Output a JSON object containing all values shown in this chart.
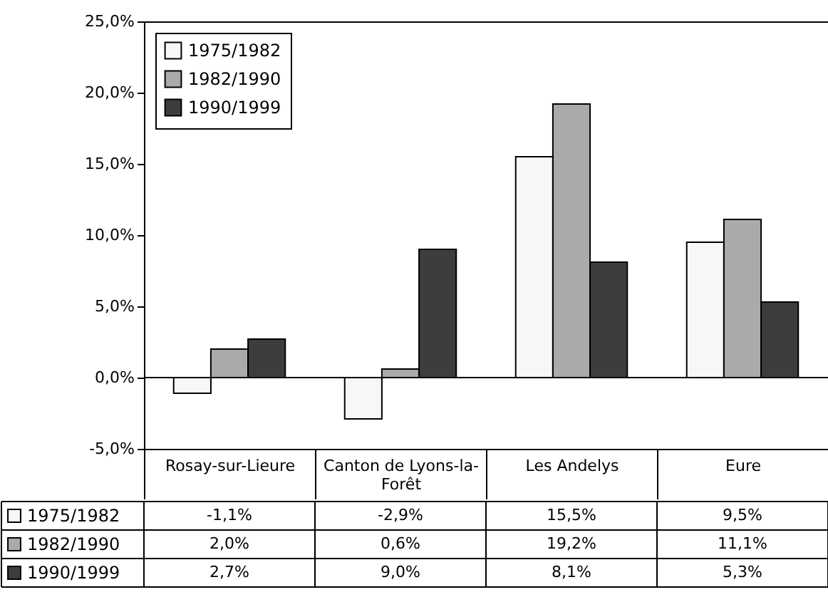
{
  "chart_data": {
    "type": "bar",
    "categories": [
      "Rosay-sur-Lieure",
      "Canton de Lyons-la-Forêt",
      "Les Andelys",
      "Eure"
    ],
    "series": [
      {
        "name": "1975/1982",
        "color": "#f7f7f7",
        "values": [
          -1.1,
          -2.9,
          15.5,
          9.5
        ],
        "value_labels": [
          "-1,1%",
          "-2,9%",
          "15,5%",
          "9,5%"
        ]
      },
      {
        "name": "1982/1990",
        "color": "#aaaaaa",
        "values": [
          2.0,
          0.6,
          19.2,
          11.1
        ],
        "value_labels": [
          "2,0%",
          "0,6%",
          "19,2%",
          "11,1%"
        ]
      },
      {
        "name": "1990/1999",
        "color": "#3d3d3d",
        "values": [
          2.7,
          9.0,
          8.1,
          5.3
        ],
        "value_labels": [
          "2,7%",
          "9,0%",
          "8,1%",
          "5,3%"
        ]
      }
    ],
    "ylim": [
      -5,
      25
    ],
    "yticks": [
      {
        "value": -5,
        "label": "-5,0%"
      },
      {
        "value": 0,
        "label": "0,0%"
      },
      {
        "value": 5,
        "label": "5,0%"
      },
      {
        "value": 10,
        "label": "10,0%"
      },
      {
        "value": 15,
        "label": "15,0%"
      },
      {
        "value": 20,
        "label": "20,0%"
      },
      {
        "value": 25,
        "label": "25,0%"
      }
    ],
    "ref_lines": [
      {
        "axis": "y",
        "value": 0
      }
    ],
    "legend": "top left"
  }
}
